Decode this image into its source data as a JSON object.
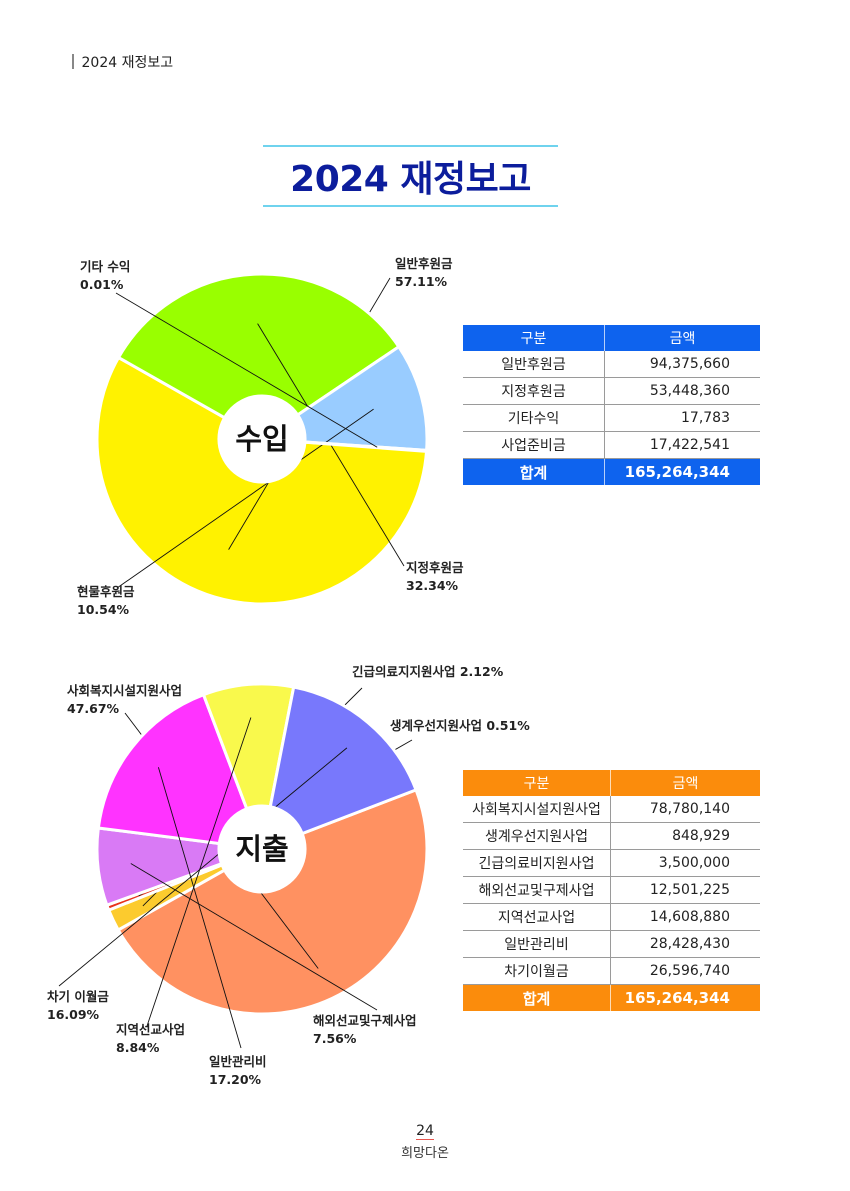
{
  "header": {
    "section_label": "2024 재정보고"
  },
  "page_title": "2024 재정보고",
  "footer": {
    "page_number": "24",
    "brand": "희망다온"
  },
  "chart_data": [
    {
      "type": "pie",
      "center_label": "수입",
      "slices": [
        {
          "label": "일반후원금",
          "percent": 57.11,
          "value_text": "57.11%",
          "color": "#fff200"
        },
        {
          "label": "지정후원금",
          "percent": 32.34,
          "value_text": "32.34%",
          "color": "#99ff00"
        },
        {
          "label": "현물후원금",
          "percent": 10.54,
          "value_text": "10.54%",
          "color": "#99ccff"
        },
        {
          "label": "기타 수익",
          "percent": 0.01,
          "value_text": "0.01%",
          "color": "#c8e6ff"
        }
      ]
    },
    {
      "type": "pie",
      "center_label": "지출",
      "slices": [
        {
          "label": "사회복지시설지원사업",
          "percent": 47.67,
          "value_text": "47.67%",
          "color": "#ff9161"
        },
        {
          "label": "긴급의료지지원사업",
          "percent": 2.12,
          "value_text": "2.12%",
          "color": "#fccb2e"
        },
        {
          "label": "생계우선지원사업",
          "percent": 0.51,
          "value_text": "0.51%",
          "color": "#e8331d"
        },
        {
          "label": "해외선교및구제사업",
          "percent": 7.56,
          "value_text": "7.56%",
          "color": "#d97af5"
        },
        {
          "label": "일반관리비",
          "percent": 17.2,
          "value_text": "17.20%",
          "color": "#ff33ff"
        },
        {
          "label": "지역선교사업",
          "percent": 8.84,
          "value_text": "8.84%",
          "color": "#f9f94c"
        },
        {
          "label": "차기 이월금",
          "percent": 16.09,
          "value_text": "16.09%",
          "color": "#7878fc"
        }
      ]
    },
    {
      "type": "table",
      "id": "income",
      "headers": [
        "구분",
        "금액"
      ],
      "rows": [
        [
          "일반후원금",
          "94,375,660"
        ],
        [
          "지정후원금",
          "53,448,360"
        ],
        [
          "기타수익",
          "17,783"
        ],
        [
          "사업준비금",
          "17,422,541"
        ]
      ],
      "total": [
        "합계",
        "165,264,344"
      ],
      "accent": "#0e63ee"
    },
    {
      "type": "table",
      "id": "expense",
      "headers": [
        "구분",
        "금액"
      ],
      "rows": [
        [
          "사회복지시설지원사업",
          "78,780,140"
        ],
        [
          "생계우선지원사업",
          "848,929"
        ],
        [
          "긴급의료비지원사업",
          "3,500,000"
        ],
        [
          "해외선교및구제사업",
          "12,501,225"
        ],
        [
          "지역선교사업",
          "14,608,880"
        ],
        [
          "일반관리비",
          "28,428,430"
        ],
        [
          "차기이월금",
          "26,596,740"
        ]
      ],
      "total": [
        "합계",
        "165,264,344"
      ],
      "accent": "#fb8c0c"
    }
  ]
}
